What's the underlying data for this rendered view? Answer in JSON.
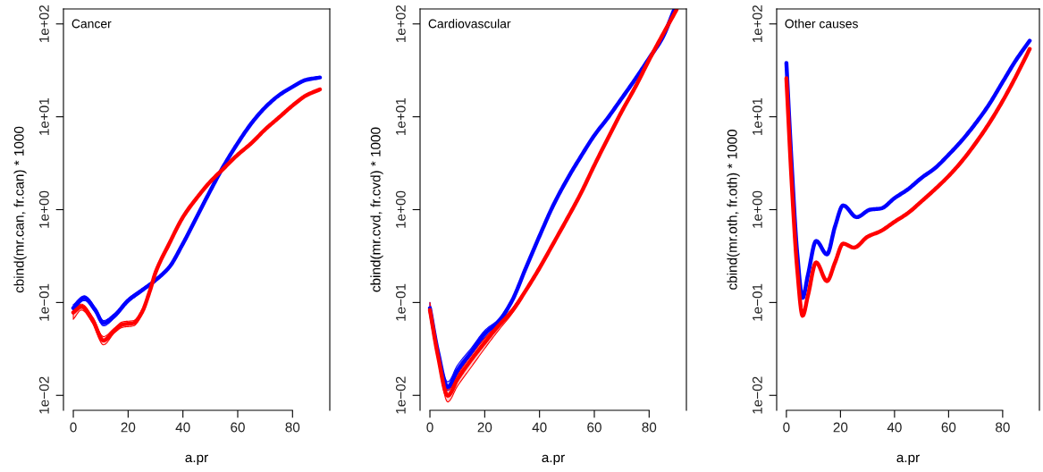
{
  "chart_data": [
    {
      "type": "line",
      "xlabel": "a.pr",
      "ylabel": "cbind(mr.can, fr.can) * 1000",
      "annotations": [
        "Cancer"
      ],
      "log": "y",
      "xlim": [
        -3.6,
        93.6
      ],
      "xticks": [
        0,
        20,
        40,
        60,
        80
      ],
      "ylim": [
        0.0069,
        145
      ],
      "yticks": [
        {
          "value": 0.01,
          "label": "1e−02"
        },
        {
          "value": 0.1,
          "label": "1e−01"
        },
        {
          "value": 1,
          "label": "1e+00"
        },
        {
          "value": 10,
          "label": "1e+01"
        },
        {
          "value": 100,
          "label": "1e+02"
        }
      ],
      "grid": false,
      "marker": "none",
      "line_style": "solid",
      "series": [
        {
          "color": "#0000ff",
          "x": [
            0,
            4,
            8,
            11,
            15,
            20,
            25,
            30,
            35,
            40,
            45,
            50,
            55,
            60,
            65,
            70,
            75,
            80,
            85,
            90
          ],
          "values": [
            0.087,
            0.112,
            0.083,
            0.06,
            0.072,
            0.105,
            0.135,
            0.174,
            0.24,
            0.43,
            0.83,
            1.6,
            3.0,
            5.2,
            8.5,
            12.6,
            17,
            21,
            25,
            26.5
          ],
          "lower": [
            0.083,
            0.105,
            0.078,
            0.056,
            0.068,
            0.1,
            0.13,
            0.174,
            0.24,
            0.43,
            0.83,
            1.6,
            3.0,
            5.2,
            8.5,
            12.6,
            17,
            21,
            25,
            26.5
          ],
          "upper": [
            0.095,
            0.118,
            0.088,
            0.064,
            0.076,
            0.11,
            0.14,
            0.174,
            0.24,
            0.43,
            0.83,
            1.6,
            3.0,
            5.2,
            8.5,
            12.6,
            17,
            21,
            25,
            26.5
          ]
        },
        {
          "color": "#ff0000",
          "x": [
            0,
            3,
            7,
            11,
            15,
            18,
            22,
            25,
            28,
            30,
            35,
            40,
            45,
            50,
            55,
            60,
            65,
            70,
            75,
            80,
            85,
            90
          ],
          "values": [
            0.078,
            0.09,
            0.065,
            0.039,
            0.05,
            0.058,
            0.06,
            0.078,
            0.135,
            0.21,
            0.43,
            0.83,
            1.33,
            2.0,
            2.8,
            3.9,
            5.2,
            7.3,
            9.8,
            13.2,
            17,
            19.7
          ],
          "lower": [
            0.066,
            0.083,
            0.06,
            0.035,
            0.047,
            0.054,
            0.056,
            0.074,
            0.13,
            0.21,
            0.43,
            0.83,
            1.33,
            2.0,
            2.8,
            3.9,
            5.2,
            7.3,
            9.8,
            13.2,
            17,
            19.7
          ],
          "upper": [
            0.082,
            0.096,
            0.07,
            0.043,
            0.053,
            0.062,
            0.064,
            0.082,
            0.14,
            0.21,
            0.43,
            0.83,
            1.33,
            2.0,
            2.8,
            3.9,
            5.2,
            7.3,
            9.8,
            13.2,
            17,
            19.7
          ]
        }
      ]
    },
    {
      "type": "line",
      "xlabel": "a.pr",
      "ylabel": "cbind(mr.cvd, fr.cvd) * 1000",
      "annotations": [
        "Cardiovascular"
      ],
      "log": "y",
      "xlim": [
        -3.6,
        93.6
      ],
      "xticks": [
        0,
        20,
        40,
        60,
        80
      ],
      "ylim": [
        0.0069,
        145
      ],
      "yticks": [
        {
          "value": 0.01,
          "label": "1e−02"
        },
        {
          "value": 0.1,
          "label": "1e−01"
        },
        {
          "value": 1,
          "label": "1e+00"
        },
        {
          "value": 10,
          "label": "1e+01"
        },
        {
          "value": 100,
          "label": "1e+02"
        }
      ],
      "grid": false,
      "marker": "none",
      "line_style": "solid",
      "series": [
        {
          "color": "#0000ff",
          "x": [
            0,
            3,
            6.5,
            10,
            15,
            20,
            25,
            30,
            35,
            40,
            45,
            50,
            55,
            60,
            65,
            70,
            75,
            80,
            85,
            89
          ],
          "values": [
            0.087,
            0.029,
            0.0123,
            0.0185,
            0.029,
            0.046,
            0.062,
            0.105,
            0.235,
            0.52,
            1.11,
            2.1,
            3.7,
            6.3,
            9.8,
            15.8,
            25.6,
            42.7,
            72,
            139
          ],
          "lower": [
            0.083,
            0.027,
            0.0113,
            0.017,
            0.027,
            0.042,
            0.058,
            0.1,
            0.235,
            0.52,
            1.11,
            2.1,
            3.7,
            6.3,
            9.8,
            15.8,
            25.6,
            42.7,
            72,
            139
          ],
          "upper": [
            0.1,
            0.031,
            0.014,
            0.021,
            0.032,
            0.05,
            0.066,
            0.11,
            0.235,
            0.52,
            1.11,
            2.1,
            3.7,
            6.3,
            9.8,
            15.8,
            25.6,
            42.7,
            72,
            139
          ]
        },
        {
          "color": "#ff0000",
          "x": [
            0,
            3,
            6.5,
            10,
            15,
            20,
            25,
            30,
            35,
            40,
            45,
            50,
            55,
            60,
            65,
            70,
            75,
            80,
            85,
            90
          ],
          "values": [
            0.083,
            0.026,
            0.0099,
            0.0148,
            0.024,
            0.037,
            0.056,
            0.081,
            0.135,
            0.235,
            0.43,
            0.79,
            1.48,
            3.0,
            5.9,
            11.4,
            21,
            41,
            77,
            142
          ],
          "lower": [
            0.08,
            0.024,
            0.0085,
            0.0125,
            0.02,
            0.032,
            0.05,
            0.076,
            0.13,
            0.235,
            0.43,
            0.79,
            1.48,
            3.0,
            5.9,
            11.4,
            21,
            41,
            77,
            142
          ],
          "upper": [
            0.1,
            0.028,
            0.0115,
            0.0165,
            0.027,
            0.041,
            0.06,
            0.086,
            0.14,
            0.235,
            0.43,
            0.79,
            1.48,
            3.0,
            5.9,
            11.4,
            21,
            41,
            77,
            142
          ]
        }
      ]
    },
    {
      "type": "line",
      "xlabel": "a.pr",
      "ylabel": "cbind(mr.oth, fr.oth) * 1000",
      "annotations": [
        "Other causes"
      ],
      "log": "y",
      "xlim": [
        -3.6,
        93.6
      ],
      "xticks": [
        0,
        20,
        40,
        60,
        80
      ],
      "ylim": [
        0.0069,
        145
      ],
      "yticks": [
        {
          "value": 0.01,
          "label": "1e−02"
        },
        {
          "value": 0.1,
          "label": "1e−01"
        },
        {
          "value": 1,
          "label": "1e+00"
        },
        {
          "value": 10,
          "label": "1e+01"
        },
        {
          "value": 100,
          "label": "1e+02"
        }
      ],
      "grid": false,
      "marker": "none",
      "line_style": "solid",
      "series": [
        {
          "color": "#0000ff",
          "x": [
            0,
            2,
            4,
            6,
            8,
            11,
            15,
            18,
            21,
            26,
            31,
            35,
            40,
            45,
            50,
            55,
            60,
            65,
            70,
            75,
            80,
            85,
            90
          ],
          "values": [
            38,
            2.9,
            0.34,
            0.112,
            0.2,
            0.46,
            0.33,
            0.66,
            1.11,
            0.83,
            1.0,
            1.03,
            1.33,
            1.66,
            2.2,
            2.8,
            3.9,
            5.6,
            8.5,
            13.6,
            23.7,
            41,
            66
          ]
        },
        {
          "color": "#ff0000",
          "x": [
            0,
            2,
            4,
            6,
            8,
            11,
            15,
            18,
            21,
            25,
            30,
            35,
            40,
            45,
            50,
            55,
            60,
            65,
            70,
            75,
            80,
            85,
            90
          ],
          "values": [
            26,
            1.86,
            0.23,
            0.072,
            0.12,
            0.27,
            0.17,
            0.27,
            0.43,
            0.39,
            0.51,
            0.59,
            0.74,
            0.92,
            1.23,
            1.66,
            2.3,
            3.35,
            5.2,
            8.5,
            14.8,
            27.5,
            53.7
          ]
        }
      ]
    }
  ]
}
